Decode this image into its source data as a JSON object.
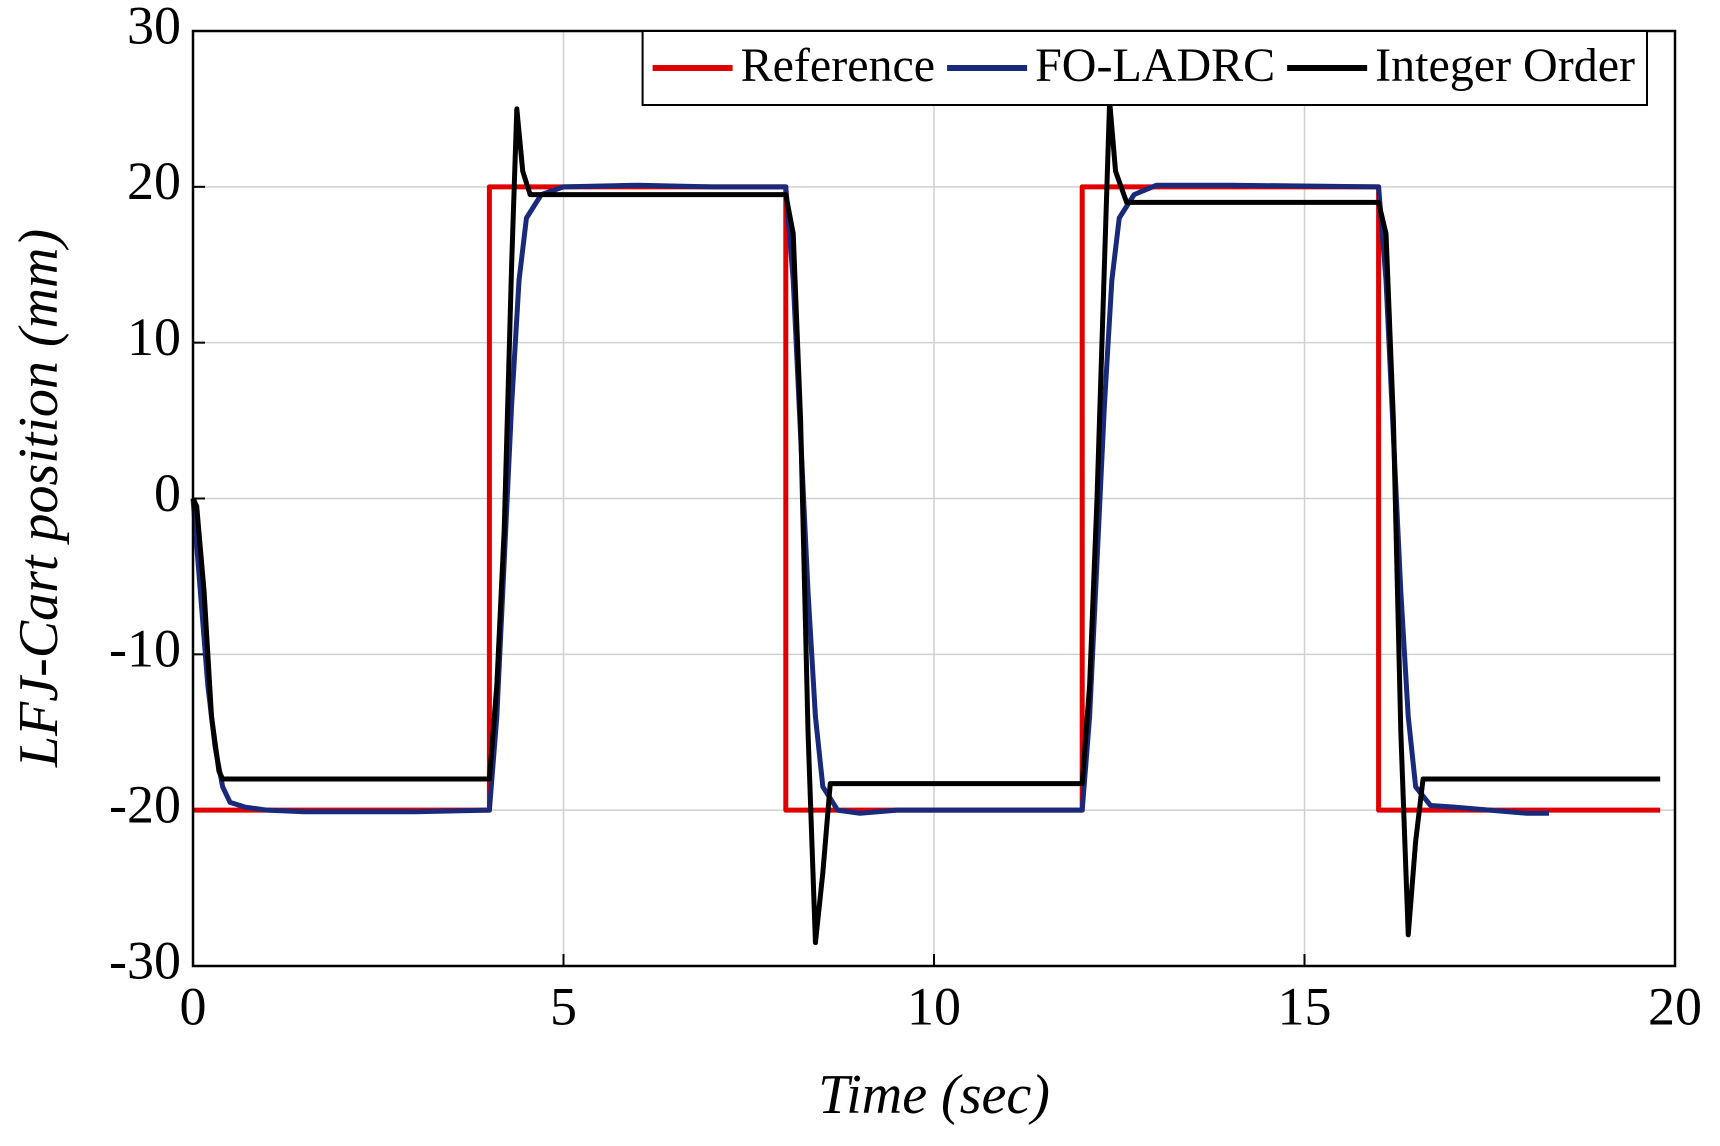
{
  "chart_data": {
    "type": "line",
    "xlabel": "Time (sec)",
    "ylabel": "LFJ-Cart position (mm)",
    "xlim": [
      0,
      20
    ],
    "xticks": [
      0,
      5,
      10,
      15,
      20
    ],
    "ylim": [
      -30,
      30
    ],
    "yticks": [
      -30,
      -20,
      -10,
      0,
      10,
      20,
      30
    ],
    "grid": true,
    "legend": "top-right",
    "series": [
      {
        "name": "Reference",
        "color": "#e00000",
        "x": [
          0,
          4,
          4,
          8,
          8,
          12,
          12,
          16,
          16,
          19.8
        ],
        "values": [
          -20,
          -20,
          20,
          20,
          -20,
          -20,
          20,
          20,
          -20,
          -20
        ]
      },
      {
        "name": "FO-LADRC",
        "color": "#1a2a7a",
        "x": [
          0,
          0.1,
          0.2,
          0.3,
          0.4,
          0.5,
          0.7,
          1,
          1.5,
          2,
          3,
          4,
          4.1,
          4.2,
          4.3,
          4.4,
          4.5,
          4.7,
          5,
          6,
          7,
          8,
          8.1,
          8.2,
          8.3,
          8.4,
          8.5,
          8.7,
          9,
          9.5,
          10,
          12,
          12.1,
          12.2,
          12.3,
          12.4,
          12.5,
          12.7,
          13,
          14,
          16,
          16.1,
          16.2,
          16.3,
          16.4,
          16.5,
          16.7,
          17,
          18,
          18.3
        ],
        "values": [
          0,
          -6,
          -12,
          -16,
          -18.5,
          -19.5,
          -19.8,
          -20,
          -20.1,
          -20.1,
          -20.1,
          -20,
          -14,
          -4,
          6,
          14,
          18,
          19.5,
          20,
          20.1,
          20,
          20,
          14,
          4,
          -6,
          -14,
          -18.5,
          -20,
          -20.2,
          -20,
          -20,
          -20,
          -14,
          -4,
          6,
          14,
          18,
          19.5,
          20.1,
          20.1,
          20,
          14,
          4,
          -6,
          -14,
          -18.5,
          -19.7,
          -19.8,
          -20.2,
          -20.2
        ]
      },
      {
        "name": "Integer Order",
        "color": "#000000",
        "x": [
          0,
          0.05,
          0.15,
          0.25,
          0.35,
          0.4,
          4,
          4.1,
          4.2,
          4.3,
          4.37,
          4.45,
          4.55,
          8,
          8.1,
          8.2,
          8.3,
          8.4,
          8.5,
          8.6,
          12,
          12.1,
          12.2,
          12.3,
          12.37,
          12.45,
          12.6,
          16,
          16.1,
          16.2,
          16.3,
          16.4,
          16.5,
          16.6,
          19.8
        ],
        "values": [
          0,
          -0.5,
          -6,
          -14,
          -17.5,
          -18,
          -18,
          -12,
          -2,
          15,
          25,
          21,
          19.5,
          19.5,
          17,
          5,
          -15,
          -28.5,
          -24,
          -18.3,
          -18.3,
          -12,
          0,
          15,
          25.5,
          21,
          19,
          19,
          17,
          5,
          -15,
          -28,
          -22,
          -18,
          -18
        ]
      }
    ]
  }
}
